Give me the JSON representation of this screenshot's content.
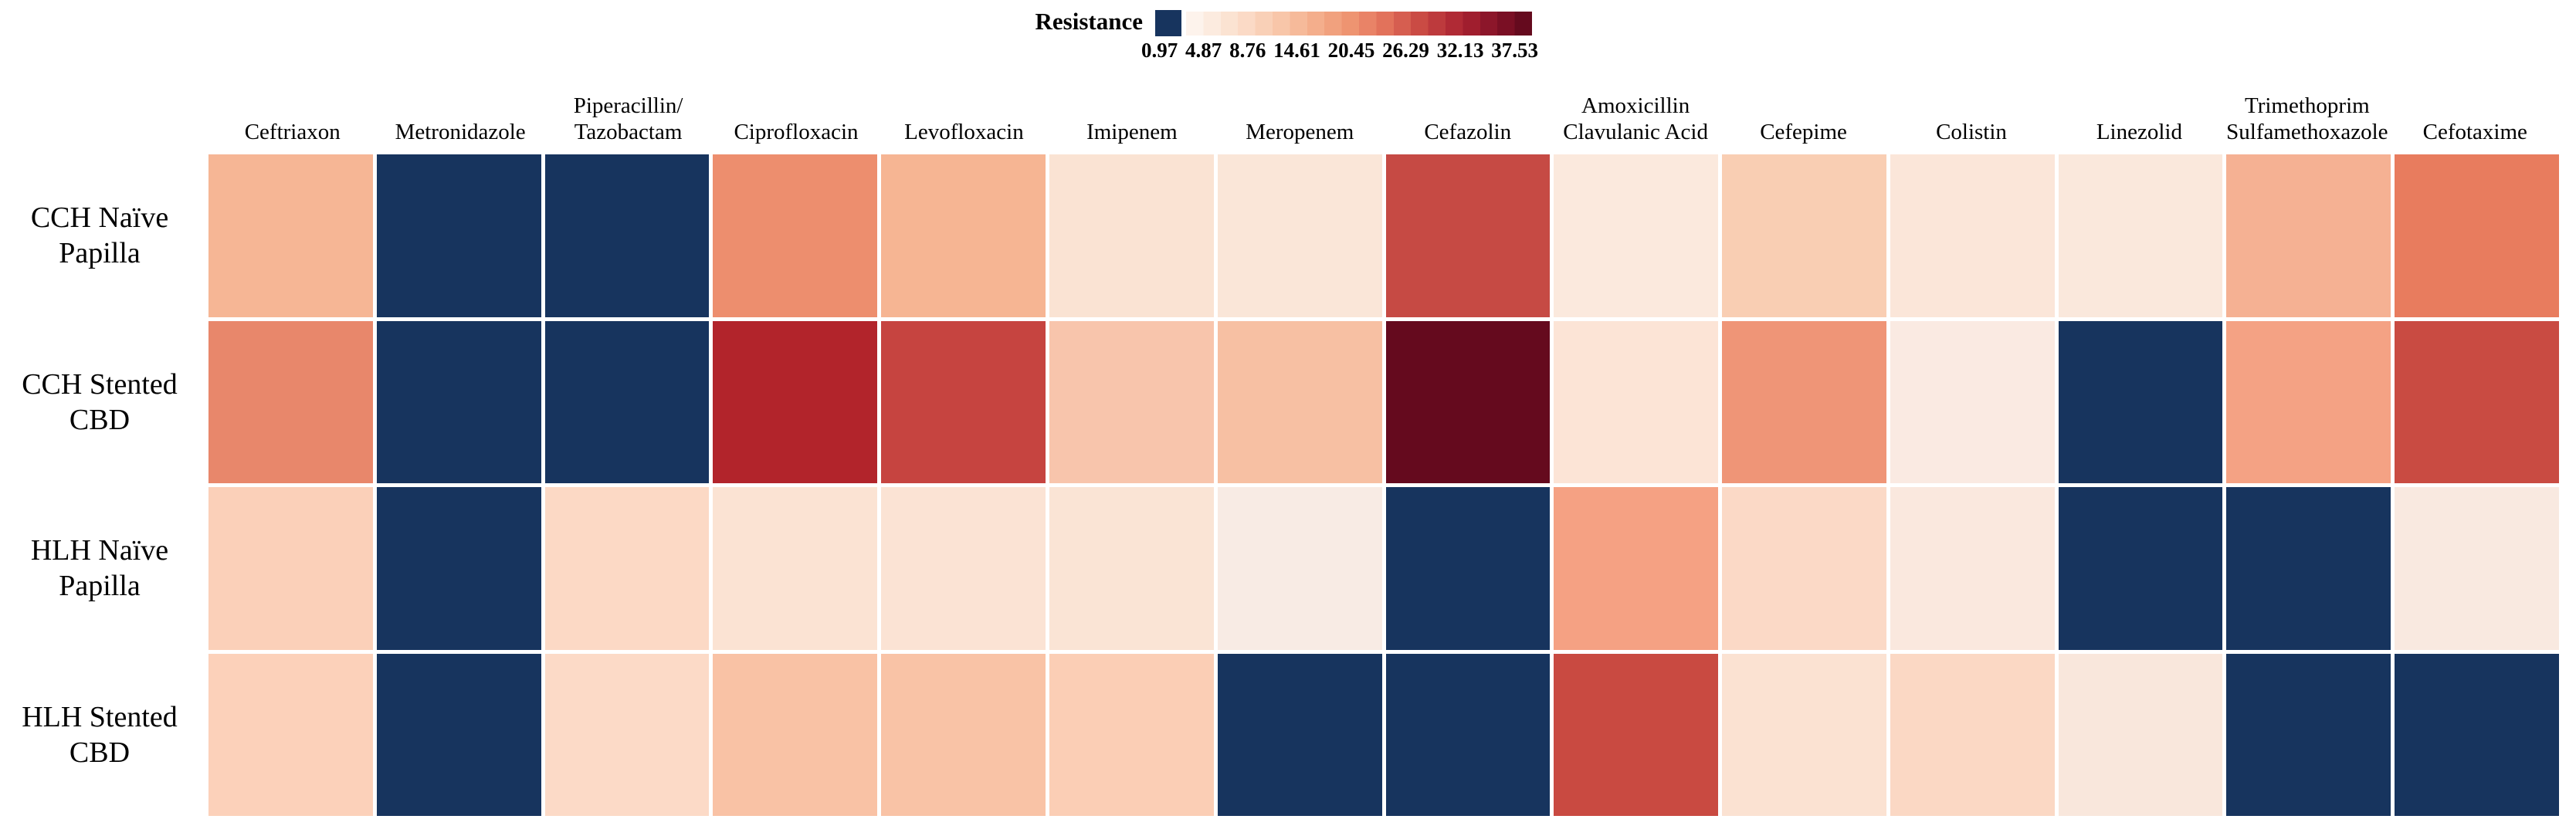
{
  "figure": {
    "kind": "antibiotic-resistance-heatmap",
    "background": "#ffffff"
  },
  "legend": {
    "title": "Resistance",
    "nan_color": "#17345e",
    "ticks": [
      "0.97",
      "4.87",
      "8.76",
      "14.61",
      "20.45",
      "26.29",
      "32.13",
      "37.53"
    ],
    "gradient_steps": [
      "#fdf3ec",
      "#fcebdf",
      "#fbe3d2",
      "#fbdac6",
      "#f9d0b7",
      "#f8c6a9",
      "#f6ba9a",
      "#f4ae8c",
      "#f1a17e",
      "#ee9471",
      "#e98367",
      "#e2725b",
      "#d65e50",
      "#ca4b44",
      "#bd3a3d",
      "#b02a35",
      "#a01e2e",
      "#8c162a",
      "#7a0f24",
      "#650a1e"
    ]
  },
  "chart_data": {
    "type": "heatmap",
    "legend_title": "Resistance",
    "value_range": [
      0.97,
      37.53
    ],
    "scale_ticks": [
      0.97,
      4.87,
      8.76,
      14.61,
      20.45,
      26.29,
      32.13,
      37.53
    ],
    "min_color": "#17345e",
    "columns": [
      {
        "lines": [
          "Ceftriaxon"
        ]
      },
      {
        "lines": [
          "Metronidazole"
        ]
      },
      {
        "lines": [
          "Piperacillin/",
          "Tazobactam"
        ]
      },
      {
        "lines": [
          "Ciprofloxacin"
        ]
      },
      {
        "lines": [
          "Levofloxacin"
        ]
      },
      {
        "lines": [
          "Imipenem"
        ]
      },
      {
        "lines": [
          "Meropenem"
        ]
      },
      {
        "lines": [
          "Cefazolin"
        ]
      },
      {
        "lines": [
          "Amoxicillin",
          "Clavulanic Acid"
        ]
      },
      {
        "lines": [
          "Cefepime"
        ]
      },
      {
        "lines": [
          "Colistin"
        ]
      },
      {
        "lines": [
          "Linezolid"
        ]
      },
      {
        "lines": [
          "Trimethoprim",
          "Sulfamethoxazole"
        ]
      },
      {
        "lines": [
          "Cefotaxime"
        ]
      }
    ],
    "rows": [
      {
        "lines": [
          "CCH Naïve",
          "Papilla"
        ]
      },
      {
        "lines": [
          "CCH Stented",
          "CBD"
        ]
      },
      {
        "lines": [
          "HLH Naïve",
          "Papilla"
        ]
      },
      {
        "lines": [
          "HLH Stented",
          "CBD"
        ]
      }
    ],
    "series": [
      {
        "name": "CCH Naïve Papilla",
        "values": [
          11.0,
          0.97,
          0.97,
          15.5,
          11.0,
          3.7,
          3.2,
          22.5,
          2.6,
          7.3,
          3.1,
          2.6,
          11.3,
          17.0
        ],
        "colors": [
          "#f6b695",
          "#17345e",
          "#17345e",
          "#ed8e6e",
          "#f6b593",
          "#fae3d3",
          "#fae6d8",
          "#c64a44",
          "#fbe9dd",
          "#f9ceb3",
          "#fbe6d9",
          "#fae8dc",
          "#f5b193",
          "#e87c5e"
        ]
      },
      {
        "name": "CCH Stented CBD",
        "values": [
          16.5,
          0.97,
          0.97,
          28.0,
          23.0,
          8.6,
          9.0,
          37.53,
          3.4,
          14.0,
          2.0,
          0.97,
          12.5,
          22.0
        ],
        "colors": [
          "#e8876b",
          "#17345e",
          "#17345e",
          "#b2242b",
          "#c64440",
          "#f8c5ac",
          "#f7c0a3",
          "#650a1e",
          "#fce4d6",
          "#ef9577",
          "#faeae2",
          "#17345e",
          "#f4a284",
          "#c94b42"
        ]
      },
      {
        "name": "HLH Naïve Papilla",
        "values": [
          7.0,
          0.97,
          5.5,
          3.7,
          3.7,
          3.6,
          2.0,
          0.97,
          12.5,
          5.5,
          2.5,
          0.97,
          0.97,
          2.1
        ],
        "colors": [
          "#fbd0b9",
          "#17345e",
          "#fcd9c5",
          "#fbe3d3",
          "#fbe3d4",
          "#fae4d5",
          "#f8ebe4",
          "#17345e",
          "#f5a183",
          "#fbd9c6",
          "#fae8de",
          "#17345e",
          "#17345e",
          "#f9e9e0"
        ]
      },
      {
        "name": "HLH Stented CBD",
        "values": [
          7.0,
          0.97,
          5.4,
          8.6,
          8.5,
          7.0,
          0.97,
          0.97,
          22.0,
          3.7,
          5.6,
          2.5,
          0.97,
          0.97
        ],
        "colors": [
          "#fcd1ba",
          "#17345e",
          "#fcdac7",
          "#f9c2a5",
          "#f9c3a6",
          "#fbceb5",
          "#17345e",
          "#17345e",
          "#c94a41",
          "#fbe2d2",
          "#fbd8c4",
          "#f9e7dc",
          "#17345e",
          "#17345e"
        ]
      }
    ]
  }
}
